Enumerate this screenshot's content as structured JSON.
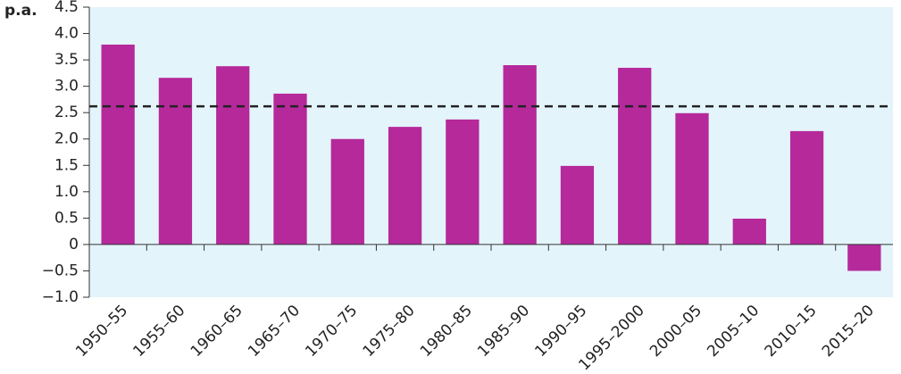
{
  "chart_data": {
    "type": "bar",
    "y_label": "p.a.",
    "categories": [
      "1950–55",
      "1955–60",
      "1960–65",
      "1965–70",
      "1970–75",
      "1975–80",
      "1980–85",
      "1985–90",
      "1990–95",
      "1995–2000",
      "2000–05",
      "2005–10",
      "2010–15",
      "2015–20"
    ],
    "values": [
      3.79,
      3.16,
      3.38,
      2.86,
      2.0,
      2.23,
      2.37,
      3.4,
      1.49,
      3.35,
      2.49,
      0.49,
      2.15,
      -0.5
    ],
    "color": "#b5299b",
    "reference_line": 2.62,
    "ylim": [
      -1.0,
      4.5
    ],
    "yticks": [
      {
        "value": -1.0,
        "label": "−1.0"
      },
      {
        "value": -0.5,
        "label": "−0.5"
      },
      0,
      0.5,
      {
        "value": 1.0,
        "label": "1.0"
      },
      1.5,
      {
        "value": 2.0,
        "label": "2.0"
      },
      2.5,
      {
        "value": 3.0,
        "label": "3.0"
      },
      3.5,
      {
        "value": 4.0,
        "label": "4.0"
      },
      4.5
    ]
  }
}
